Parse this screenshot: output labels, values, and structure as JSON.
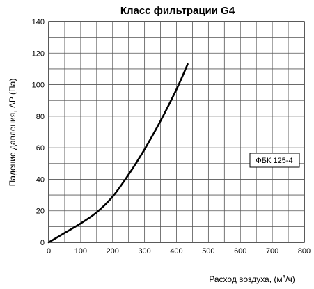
{
  "chart_data": {
    "type": "line",
    "title": "Класс фильтрации G4",
    "xlabel_main": "Расход воздуха, (м",
    "xlabel_sup": "3",
    "xlabel_end": "/ч)",
    "ylabel": "Падение давления, ΔP (Па)",
    "xlim": [
      0,
      800
    ],
    "ylim": [
      0,
      140
    ],
    "grid": true,
    "x_major_ticks": [
      0,
      100,
      200,
      300,
      400,
      500,
      600,
      700,
      800
    ],
    "x_tick_labels": [
      "0",
      "100",
      "200",
      "300",
      "400",
      "500",
      "600",
      "700",
      "800"
    ],
    "x_minor_step": 50,
    "y_major_ticks": [
      0,
      20,
      40,
      60,
      80,
      100,
      120,
      140
    ],
    "y_tick_labels": [
      "0",
      "20",
      "40",
      "60",
      "80",
      "100",
      "120",
      "140"
    ],
    "y_minor_step": 10,
    "legend_position": "right",
    "series": [
      {
        "name": "ФБК  125-4",
        "color": "#000000",
        "x": [
          0,
          50,
          100,
          150,
          200,
          250,
          300,
          350,
          400,
          435
        ],
        "y": [
          0,
          6,
          12,
          19,
          29,
          43,
          59,
          77,
          97,
          113
        ]
      }
    ]
  }
}
